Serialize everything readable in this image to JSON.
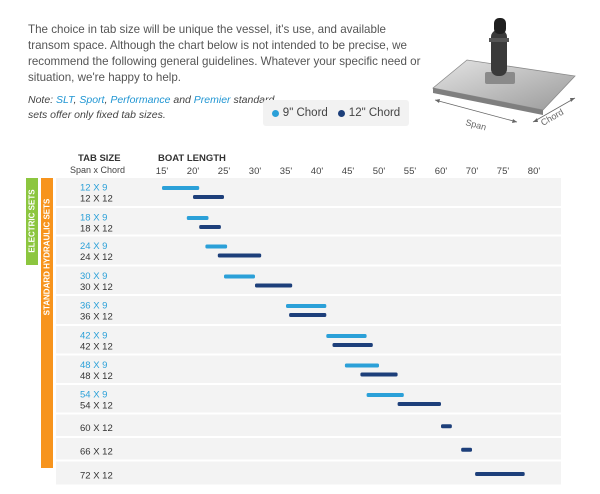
{
  "intro_text": "The choice in tab size will be unique the vessel, it's use, and available transom space. Although the chart below is not intended to be precise, we recommend the following general guidelines. Whatever your specific need or situation, we're happy to help.",
  "note": {
    "prefix": "Note: ",
    "brands": [
      "SLT",
      "Sport",
      "Performance",
      "Premier"
    ],
    "sep1": ", ",
    "sep2": ", ",
    "sep3": " and ",
    "suffix": " standard sets offer only fixed tab sizes."
  },
  "product_image": {
    "span_label": "Span",
    "chord_label": "Chord"
  },
  "colors": {
    "chord_9": "#2ba0d8",
    "chord_12": "#1d3f7a",
    "electric": "#8cc63f",
    "standard": "#f7941d",
    "stripe": "#f3f3f3"
  },
  "chart_data": {
    "type": "bar",
    "orientation": "horizontal-range",
    "header_left": "TAB SIZE",
    "subheader_left": "Span x Chord",
    "header_right": "BOAT LENGTH",
    "x_ticks": [
      "15'",
      "20'",
      "25'",
      "30'",
      "35'",
      "40'",
      "45'",
      "50'",
      "55'",
      "60'",
      "70'",
      "75'",
      "80'"
    ],
    "xlim": [
      15,
      80
    ],
    "group_labels": [
      "ELECTRIC SETS",
      "STANDARD HYDRAULIC SETS"
    ],
    "legend": [
      {
        "name": "9\" Chord",
        "color": "#2ba0d8"
      },
      {
        "name": "12\" Chord",
        "color": "#1d3f7a"
      }
    ],
    "rows": [
      {
        "labels": [
          "12 X 9",
          "12 X 12"
        ],
        "bars": [
          {
            "name": "12 X 9",
            "chord": 9,
            "start": 15,
            "end": 21
          },
          {
            "name": "12 X 12",
            "chord": 12,
            "start": 20,
            "end": 25
          }
        ]
      },
      {
        "labels": [
          "18 X 9",
          "18 X 12"
        ],
        "bars": [
          {
            "name": "18 X 9",
            "chord": 9,
            "start": 19,
            "end": 22.5
          },
          {
            "name": "18 X 12",
            "chord": 12,
            "start": 21,
            "end": 24.5
          }
        ]
      },
      {
        "labels": [
          "24 X 9",
          "24 X 12"
        ],
        "bars": [
          {
            "name": "24 X 9",
            "chord": 9,
            "start": 22,
            "end": 25.5
          },
          {
            "name": "24 X 12",
            "chord": 12,
            "start": 24,
            "end": 31
          }
        ]
      },
      {
        "labels": [
          "30 X 9",
          "30 X 12"
        ],
        "bars": [
          {
            "name": "30 X 9",
            "chord": 9,
            "start": 25,
            "end": 30
          },
          {
            "name": "30 X 12",
            "chord": 12,
            "start": 30,
            "end": 36
          }
        ]
      },
      {
        "labels": [
          "36 X 9",
          "36 X 12"
        ],
        "bars": [
          {
            "name": "36 X 9",
            "chord": 9,
            "start": 35,
            "end": 41.5
          },
          {
            "name": "36 X 12",
            "chord": 12,
            "start": 35.5,
            "end": 41.5
          }
        ]
      },
      {
        "labels": [
          "42 X 9",
          "42 X 12"
        ],
        "bars": [
          {
            "name": "42 X 9",
            "chord": 9,
            "start": 41.5,
            "end": 48
          },
          {
            "name": "42 X 12",
            "chord": 12,
            "start": 42.5,
            "end": 49
          }
        ]
      },
      {
        "labels": [
          "48 X 9",
          "48 X 12"
        ],
        "bars": [
          {
            "name": "48 X 9",
            "chord": 9,
            "start": 44.5,
            "end": 50
          },
          {
            "name": "48 X 12",
            "chord": 12,
            "start": 47,
            "end": 53
          }
        ]
      },
      {
        "labels": [
          "54 X 9",
          "54 X 12"
        ],
        "bars": [
          {
            "name": "54 X 9",
            "chord": 9,
            "start": 48,
            "end": 54
          },
          {
            "name": "54 X 12",
            "chord": 12,
            "start": 53,
            "end": 60
          }
        ]
      },
      {
        "labels": [
          "60 X 12"
        ],
        "bars": [
          {
            "name": "60 X 12",
            "chord": 12,
            "start": 60,
            "end": 63.5
          }
        ]
      },
      {
        "labels": [
          "66 X 12"
        ],
        "bars": [
          {
            "name": "66 X 12",
            "chord": 12,
            "start": 66.5,
            "end": 70
          }
        ]
      },
      {
        "labels": [
          "72 X 12"
        ],
        "bars": [
          {
            "name": "72 X 12",
            "chord": 12,
            "start": 70.5,
            "end": 78.5
          }
        ]
      }
    ]
  }
}
